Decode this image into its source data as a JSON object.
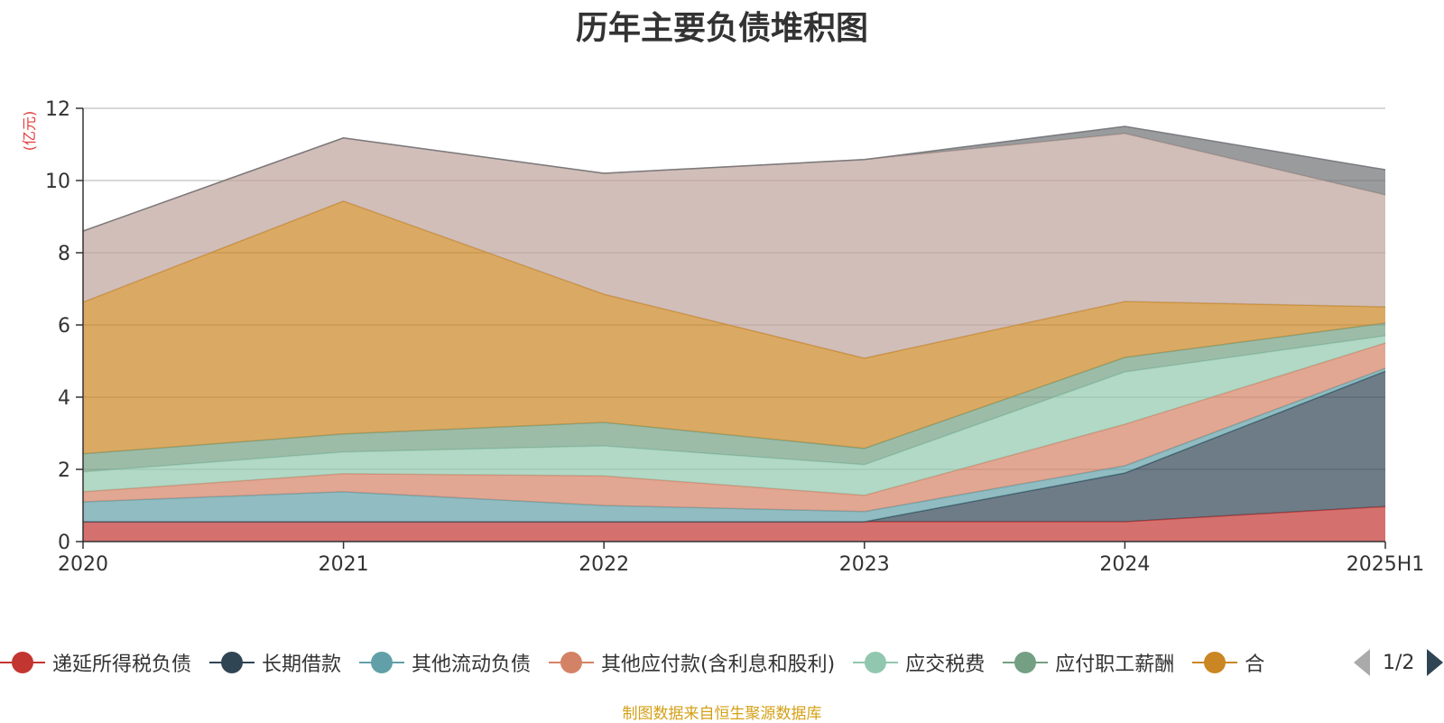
{
  "chart_data": {
    "type": "area",
    "stacked": true,
    "title": "历年主要负债堆积图",
    "ylabel": "(亿元)",
    "xlabel": "",
    "ylim": [
      0,
      12
    ],
    "yticks": [
      0,
      2,
      4,
      6,
      8,
      10,
      12
    ],
    "grid": true,
    "categories": [
      "2020",
      "2021",
      "2022",
      "2023",
      "2024",
      "2025H1"
    ],
    "series": [
      {
        "name": "递延所得税负债",
        "color": "#c23531",
        "values": [
          0.55,
          0.55,
          0.55,
          0.55,
          0.55,
          0.97
        ]
      },
      {
        "name": "长期借款",
        "color": "#2f4554",
        "values": [
          0,
          0,
          0,
          0,
          1.35,
          3.75
        ]
      },
      {
        "name": "其他流动负债",
        "color": "#61a0a8",
        "values": [
          0.55,
          0.83,
          0.45,
          0.28,
          0.2,
          0.08
        ]
      },
      {
        "name": "其他应付款(含利息和股利)",
        "color": "#d48265",
        "values": [
          0.28,
          0.5,
          0.82,
          0.45,
          1.15,
          0.7
        ]
      },
      {
        "name": "应交税费",
        "color": "#91c7ae",
        "values": [
          0.55,
          0.6,
          0.83,
          0.85,
          1.45,
          0.2
        ]
      },
      {
        "name": "应付职工薪酬",
        "color": "#749f83",
        "values": [
          0.5,
          0.5,
          0.65,
          0.45,
          0.4,
          0.35
        ]
      },
      {
        "name": "",
        "color": "#ca8622",
        "values": [
          4.2,
          6.45,
          3.55,
          2.5,
          1.55,
          0.45
        ]
      },
      {
        "name": "",
        "color": "#bda29a",
        "values": [
          1.97,
          1.75,
          3.35,
          5.5,
          4.65,
          3.1
        ]
      },
      {
        "name": "",
        "color": "#6e7074",
        "values": [
          0,
          0,
          0,
          0,
          0.2,
          0.7
        ]
      }
    ]
  },
  "legend": {
    "page_text": "1/2",
    "truncated_fragment": "合"
  },
  "footer": {
    "source_note": "制图数据来自恒生聚源数据库"
  }
}
